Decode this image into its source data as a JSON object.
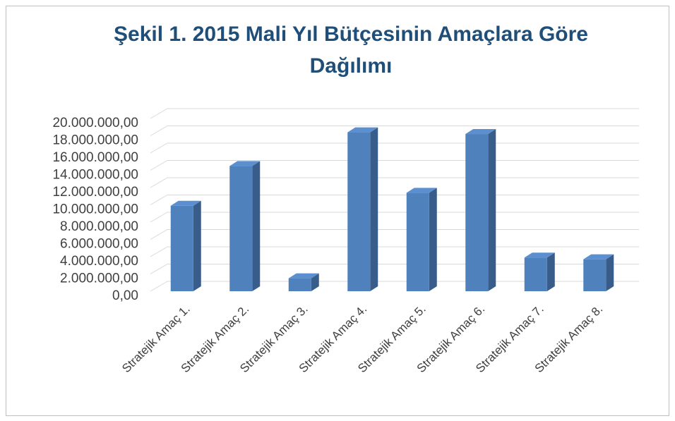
{
  "chart_data": {
    "type": "bar3d",
    "title": "Şekil 1.  2015 Mali Yıl Bütçesinin Amaçlara Göre",
    "title_line2": "Dağılımı",
    "categories": [
      "Stratejik Amaç 1.",
      "Stratejik Amaç 2.",
      "Stratejik Amaç 3.",
      "Stratejik Amaç 4.",
      "Stratejik Amaç 5.",
      "Stratejik Amaç 6.",
      "Stratejik Amaç 7.",
      "Stratejik Amaç 8."
    ],
    "values": [
      9900000,
      14500000,
      1500000,
      18400000,
      11400000,
      18200000,
      3900000,
      3700000
    ],
    "color": "#4f81bd",
    "ylim": [
      0,
      20000000
    ],
    "yticks": [
      {
        "value": 0,
        "label": "0,00"
      },
      {
        "value": 2000000,
        "label": "2.000.000,00"
      },
      {
        "value": 4000000,
        "label": "4.000.000,00"
      },
      {
        "value": 6000000,
        "label": "6.000.000,00"
      },
      {
        "value": 8000000,
        "label": "8.000.000,00"
      },
      {
        "value": 10000000,
        "label": "10.000.000,00"
      },
      {
        "value": 12000000,
        "label": "12.000.000,00"
      },
      {
        "value": 14000000,
        "label": "14.000.000,00"
      },
      {
        "value": 16000000,
        "label": "16.000.000,00"
      },
      {
        "value": 18000000,
        "label": "18.000.000,00"
      },
      {
        "value": 20000000,
        "label": "20.000.000,00"
      }
    ],
    "grid": true
  }
}
